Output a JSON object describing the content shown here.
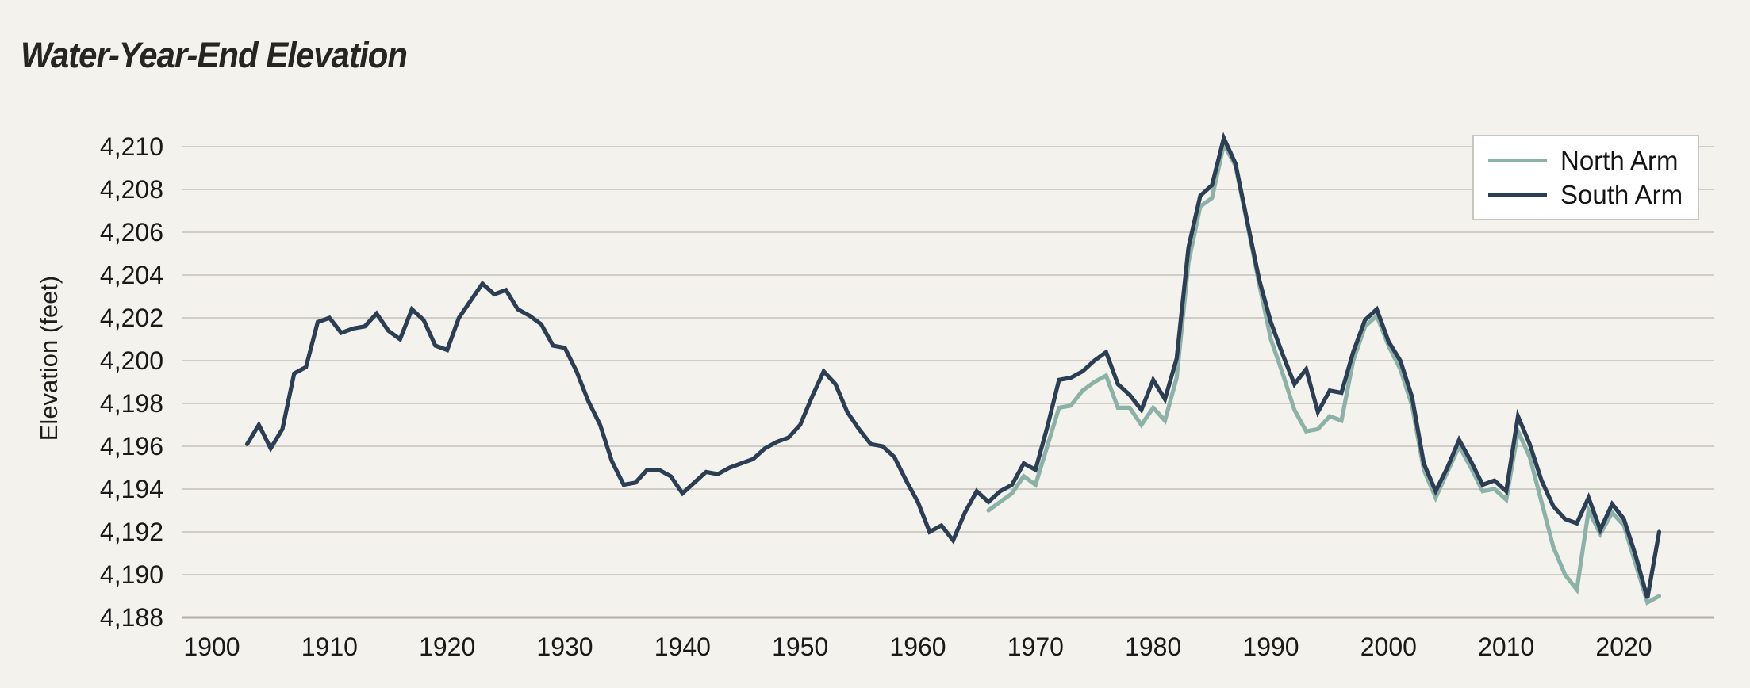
{
  "header": {
    "title": "Water-Year-End Elevation"
  },
  "axes": {
    "y_title": "Elevation (feet)",
    "x_title": ""
  },
  "legend": {
    "items": [
      {
        "label": "North Arm",
        "color": "#8cb2a8"
      },
      {
        "label": "South Arm",
        "color": "#2b3e53"
      }
    ]
  },
  "colors": {
    "background": "#f4f2ed",
    "grid": "#d0cdc7",
    "axis_line": "#b3b0aa",
    "north_arm": "#8cb2a8",
    "south_arm": "#2b3e53",
    "text": "#191918",
    "legend_border": "#c9c6c0",
    "legend_background": "#ffffff"
  },
  "chart_data": {
    "type": "line",
    "title": "Water-Year-End Elevation",
    "xlabel": "",
    "ylabel": "Elevation (feet)",
    "xlim": [
      1899,
      2025
    ],
    "ylim": [
      4188,
      4210
    ],
    "grid": "horizontal",
    "legend_position": "top-right",
    "x_ticks": [
      1900,
      1910,
      1920,
      1930,
      1940,
      1950,
      1960,
      1970,
      1980,
      1990,
      2000,
      2010,
      2020
    ],
    "y_ticks": [
      4188,
      4190,
      4192,
      4194,
      4196,
      4198,
      4200,
      4202,
      4204,
      4206,
      4208,
      4210
    ],
    "y_tick_labels": [
      "4,188",
      "4,190",
      "4,192",
      "4,194",
      "4,196",
      "4,198",
      "4,200",
      "4,202",
      "4,204",
      "4,206",
      "4,208",
      "4,210"
    ],
    "series": [
      {
        "name": "North Arm",
        "color": "#8cb2a8",
        "start_year": 1966,
        "values": [
          4193.0,
          4193.4,
          4193.8,
          4194.6,
          4194.2,
          4196.0,
          4197.8,
          4197.9,
          4198.6,
          4199.0,
          4199.3,
          4197.8,
          4197.8,
          4197.0,
          4197.8,
          4197.2,
          4199.2,
          4204.6,
          4207.2,
          4207.6,
          4210.1,
          4209.1,
          4206.4,
          4203.6,
          4201.0,
          4199.4,
          4197.7,
          4196.7,
          4196.8,
          4197.4,
          4197.2,
          4200.0,
          4201.6,
          4202.1,
          4200.7,
          4199.6,
          4197.9,
          4194.9,
          4193.6,
          4194.8,
          4196.0,
          4195.0,
          4193.9,
          4194.0,
          4193.5,
          4196.7,
          4195.5,
          4193.4,
          4191.3,
          4190.0,
          4189.3,
          4193.0,
          4191.9,
          4192.9,
          4192.3,
          4190.5,
          4188.7,
          4189.0
        ]
      },
      {
        "name": "South Arm",
        "color": "#2b3e53",
        "start_year": 1903,
        "values": [
          4196.1,
          4197.0,
          4195.9,
          4196.8,
          4199.4,
          4199.7,
          4201.8,
          4202.0,
          4201.3,
          4201.5,
          4201.6,
          4202.2,
          4201.4,
          4201.0,
          4202.4,
          4201.9,
          4200.7,
          4200.5,
          4202.0,
          4202.8,
          4203.6,
          4203.1,
          4203.3,
          4202.4,
          4202.1,
          4201.7,
          4200.7,
          4200.6,
          4199.5,
          4198.1,
          4197.0,
          4195.3,
          4194.2,
          4194.3,
          4194.9,
          4194.9,
          4194.6,
          4193.8,
          4194.3,
          4194.8,
          4194.7,
          4195.0,
          4195.2,
          4195.4,
          4195.9,
          4196.2,
          4196.4,
          4197.0,
          4198.3,
          4199.5,
          4198.9,
          4197.6,
          4196.8,
          4196.1,
          4196.0,
          4195.5,
          4194.4,
          4193.4,
          4192.0,
          4192.3,
          4191.6,
          4192.9,
          4193.9,
          4193.4,
          4193.9,
          4194.2,
          4195.2,
          4194.9,
          4196.9,
          4199.1,
          4199.2,
          4199.5,
          4200.0,
          4200.4,
          4198.9,
          4198.4,
          4197.7,
          4199.1,
          4198.2,
          4200.1,
          4205.3,
          4207.7,
          4208.2,
          4210.4,
          4209.2,
          4206.5,
          4203.8,
          4201.8,
          4200.3,
          4198.9,
          4199.6,
          4197.6,
          4198.6,
          4198.5,
          4200.4,
          4201.9,
          4202.4,
          4200.9,
          4200.0,
          4198.3,
          4195.2,
          4193.9,
          4195.0,
          4196.3,
          4195.3,
          4194.2,
          4194.4,
          4193.9,
          4197.4,
          4196.1,
          4194.4,
          4193.2,
          4192.6,
          4192.4,
          4193.6,
          4192.1,
          4193.3,
          4192.6,
          4190.9,
          4188.9,
          4192.0
        ]
      }
    ]
  }
}
